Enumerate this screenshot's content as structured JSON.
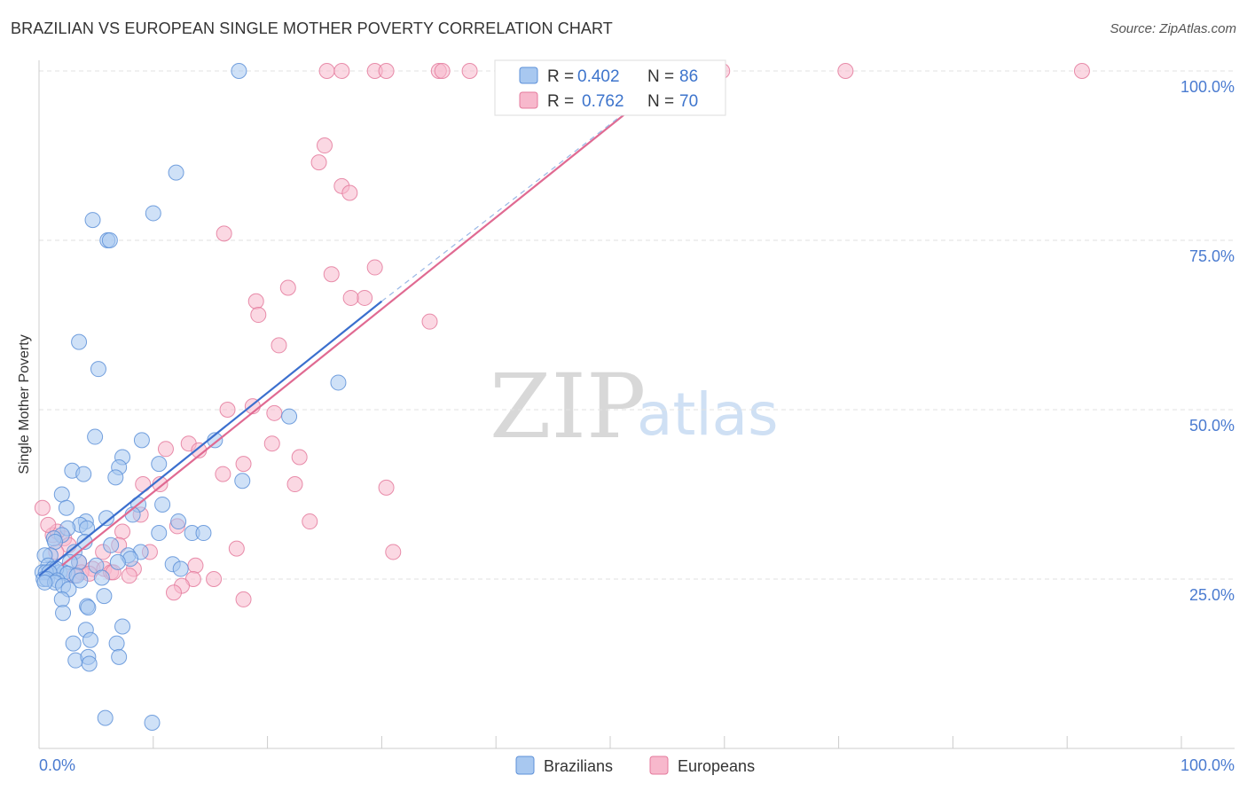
{
  "header": {
    "title": "BRAZILIAN VS EUROPEAN SINGLE MOTHER POVERTY CORRELATION CHART",
    "source": "Source: ZipAtlas.com"
  },
  "watermark": {
    "zip": "ZIP",
    "atlas": "atlas"
  },
  "colors": {
    "brazilians_fill": "#a8c8f0",
    "brazilians_stroke": "#5d90d8",
    "brazilians_line": "#3b6fce",
    "europeans_fill": "#f7b8cc",
    "europeans_stroke": "#e47a9c",
    "europeans_line": "#e06a92",
    "axis_label": "#4a7bd0",
    "grid": "#e2e2e2"
  },
  "legend": {
    "rows": [
      {
        "r_label": "R = ",
        "r_value": "0.402",
        "n_label": "N = ",
        "n_value": "86"
      },
      {
        "r_label": "R = ",
        "r_value": "0.762",
        "n_label": "N = ",
        "n_value": "70"
      }
    ]
  },
  "chart_data": {
    "type": "scatter",
    "title": "BRAZILIAN VS EUROPEAN SINGLE MOTHER POVERTY CORRELATION CHART",
    "xlabel": "",
    "ylabel": "Single Mother Poverty",
    "xlim": [
      0,
      100
    ],
    "ylim": [
      0,
      100
    ],
    "x_tick_labels": [
      "0.0%",
      "100.0%"
    ],
    "y_ticks": [
      25,
      50,
      75,
      100
    ],
    "y_tick_labels": [
      "25.0%",
      "50.0%",
      "75.0%",
      "100.0%"
    ],
    "legend_entries": [
      "Brazilians",
      "Europeans"
    ],
    "series": [
      {
        "name": "Brazilians",
        "r": 0.402,
        "n": 86,
        "trend": {
          "x": [
            0,
            30
          ],
          "y": [
            25.5,
            66
          ]
        },
        "trend_extension": {
          "x": [
            30,
            56
          ],
          "y": [
            66,
            100
          ]
        },
        "points": [
          [
            17.5,
            100
          ],
          [
            12,
            85
          ],
          [
            10,
            79
          ],
          [
            4.7,
            78
          ],
          [
            6,
            75
          ],
          [
            6.2,
            75
          ],
          [
            3.5,
            60
          ],
          [
            5.2,
            56
          ],
          [
            26.2,
            54
          ],
          [
            21.9,
            49
          ],
          [
            4.9,
            46
          ],
          [
            9,
            45.5
          ],
          [
            15.4,
            45.5
          ],
          [
            7.3,
            43
          ],
          [
            10.5,
            42
          ],
          [
            7,
            41.5
          ],
          [
            2.9,
            41
          ],
          [
            3.9,
            40.5
          ],
          [
            6.7,
            40
          ],
          [
            17.8,
            39.5
          ],
          [
            2,
            37.5
          ],
          [
            10.8,
            36
          ],
          [
            8.7,
            36
          ],
          [
            2.4,
            35.5
          ],
          [
            5.9,
            34
          ],
          [
            8.2,
            34.5
          ],
          [
            4.1,
            33.5
          ],
          [
            12.2,
            33.5
          ],
          [
            3.6,
            33
          ],
          [
            4.2,
            32.5
          ],
          [
            2.5,
            32.5
          ],
          [
            10.5,
            31.8
          ],
          [
            13.4,
            31.8
          ],
          [
            14.4,
            31.8
          ],
          [
            2,
            31.5
          ],
          [
            1.3,
            31
          ],
          [
            1.4,
            30.5
          ],
          [
            4,
            30.5
          ],
          [
            6.3,
            30
          ],
          [
            3.1,
            29
          ],
          [
            8.9,
            29
          ],
          [
            7.8,
            28.5
          ],
          [
            1,
            28.5
          ],
          [
            0.5,
            28.5
          ],
          [
            3.5,
            27.5
          ],
          [
            8,
            28
          ],
          [
            6.9,
            27.5
          ],
          [
            2.7,
            27.5
          ],
          [
            5,
            27
          ],
          [
            11.7,
            27.2
          ],
          [
            0.8,
            27
          ],
          [
            1.2,
            26.5
          ],
          [
            12.4,
            26.5
          ],
          [
            1.8,
            26
          ],
          [
            2.2,
            26
          ],
          [
            1.5,
            26.5
          ],
          [
            0.3,
            26
          ],
          [
            0.6,
            26
          ],
          [
            0.9,
            26
          ],
          [
            2.5,
            25.8
          ],
          [
            3.3,
            25.5
          ],
          [
            5.5,
            25.2
          ],
          [
            0.4,
            25
          ],
          [
            0.7,
            25
          ],
          [
            1.6,
            24.8
          ],
          [
            3.6,
            24.8
          ],
          [
            1.4,
            24.5
          ],
          [
            0.5,
            24.5
          ],
          [
            2.1,
            24
          ],
          [
            2.6,
            23.5
          ],
          [
            5.7,
            22.5
          ],
          [
            2,
            22
          ],
          [
            4.2,
            21
          ],
          [
            4.3,
            20.8
          ],
          [
            2.1,
            20
          ],
          [
            7.3,
            18
          ],
          [
            4.1,
            17.5
          ],
          [
            3,
            15.5
          ],
          [
            4.5,
            16
          ],
          [
            6.8,
            15.5
          ],
          [
            3.2,
            13
          ],
          [
            4.3,
            13.5
          ],
          [
            7,
            13.5
          ],
          [
            4.4,
            12.5
          ],
          [
            5.8,
            4.5
          ],
          [
            9.9,
            3.8
          ]
        ]
      },
      {
        "name": "Europeans",
        "r": 0.762,
        "n": 70,
        "trend": {
          "x": [
            2,
            56
          ],
          "y": [
            27,
            100
          ]
        },
        "points": [
          [
            25.2,
            100
          ],
          [
            26.5,
            100
          ],
          [
            29.4,
            100
          ],
          [
            30.4,
            100
          ],
          [
            35,
            100
          ],
          [
            35.3,
            100
          ],
          [
            37.7,
            100
          ],
          [
            59.8,
            100
          ],
          [
            70.6,
            100
          ],
          [
            91.3,
            100
          ],
          [
            25,
            89
          ],
          [
            24.5,
            86.5
          ],
          [
            26.5,
            83
          ],
          [
            27.2,
            82
          ],
          [
            16.2,
            76
          ],
          [
            29.4,
            71
          ],
          [
            25.6,
            70
          ],
          [
            21.8,
            68
          ],
          [
            19,
            66
          ],
          [
            28.5,
            66.5
          ],
          [
            27.3,
            66.5
          ],
          [
            19.2,
            64
          ],
          [
            34.2,
            63
          ],
          [
            21,
            59.5
          ],
          [
            16.5,
            50
          ],
          [
            18.7,
            50.5
          ],
          [
            20.6,
            49.5
          ],
          [
            13.1,
            45
          ],
          [
            20.4,
            45
          ],
          [
            11.1,
            44.2
          ],
          [
            14,
            44
          ],
          [
            22.8,
            43
          ],
          [
            17.9,
            42
          ],
          [
            16.1,
            40.5
          ],
          [
            10.6,
            39
          ],
          [
            9.1,
            39
          ],
          [
            22.4,
            39
          ],
          [
            30.4,
            38.5
          ],
          [
            8.9,
            34.5
          ],
          [
            23.7,
            33.5
          ],
          [
            12.1,
            32.8
          ],
          [
            7.3,
            32
          ],
          [
            1.2,
            31.5
          ],
          [
            2.2,
            31
          ],
          [
            7,
            30
          ],
          [
            17.3,
            29.5
          ],
          [
            31,
            29
          ],
          [
            9.7,
            29
          ],
          [
            5.6,
            29
          ],
          [
            3.5,
            27.5
          ],
          [
            13.7,
            27
          ],
          [
            4.7,
            26.5
          ],
          [
            5.7,
            26.5
          ],
          [
            6.3,
            26
          ],
          [
            8.3,
            26.5
          ],
          [
            3.7,
            26
          ],
          [
            4.4,
            25.8
          ],
          [
            7.9,
            25.5
          ],
          [
            3.1,
            25.5
          ],
          [
            13.5,
            25
          ],
          [
            15.3,
            25
          ],
          [
            12.5,
            24
          ],
          [
            11.8,
            23
          ],
          [
            17.9,
            22
          ],
          [
            0.3,
            35.5
          ],
          [
            1.6,
            32
          ],
          [
            0.8,
            33
          ],
          [
            2.6,
            30
          ],
          [
            1.5,
            29
          ],
          [
            6.5,
            26
          ]
        ]
      }
    ]
  },
  "bottom_legend": {
    "items": [
      "Brazilians",
      "Europeans"
    ]
  },
  "axis_labels": {
    "y_axis_title": "Single Mother Poverty"
  }
}
